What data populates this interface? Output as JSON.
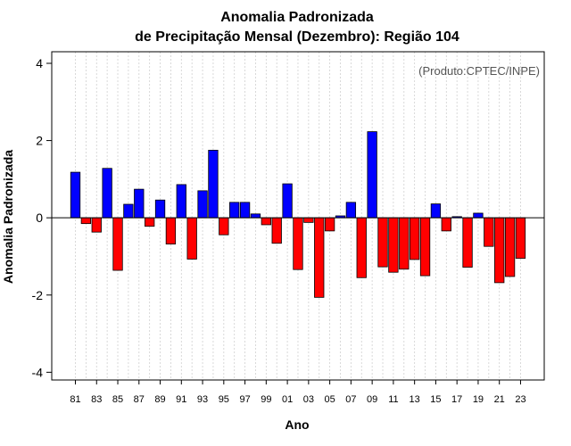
{
  "chart_data": {
    "type": "bar",
    "title_line1": "Anomalia Padronizada",
    "title_line2": "de Precipitação Mensal (Dezembro): Região 104",
    "xlabel": "Ano",
    "ylabel": "Anomalia Padronizada",
    "credit": "(Produto:CPTEC/INPE)",
    "ylim": [
      -4.2,
      4.3
    ],
    "yticks": [
      -4,
      -2,
      0,
      2,
      4
    ],
    "ytick_labels": [
      "-4",
      "-2",
      "0",
      "2",
      "4"
    ],
    "tick_labels": [
      "81",
      "83",
      "85",
      "87",
      "89",
      "91",
      "93",
      "95",
      "97",
      "99",
      "01",
      "03",
      "05",
      "07",
      "09",
      "11",
      "13",
      "15",
      "17",
      "19",
      "21",
      "23"
    ],
    "categories": [
      "1981",
      "1982",
      "1983",
      "1984",
      "1985",
      "1986",
      "1987",
      "1988",
      "1989",
      "1990",
      "1991",
      "1992",
      "1993",
      "1994",
      "1995",
      "1996",
      "1997",
      "1998",
      "1999",
      "2000",
      "2001",
      "2002",
      "2003",
      "2004",
      "2005",
      "2006",
      "2007",
      "2008",
      "2009",
      "2010",
      "2011",
      "2012",
      "2013",
      "2014",
      "2015",
      "2016",
      "2017",
      "2018",
      "2019",
      "2020",
      "2021",
      "2022",
      "2023"
    ],
    "values": [
      1.18,
      -0.15,
      -0.37,
      1.28,
      -1.36,
      0.35,
      0.74,
      -0.22,
      0.46,
      -0.68,
      0.86,
      -1.07,
      0.7,
      1.75,
      -0.44,
      0.4,
      0.4,
      0.1,
      -0.18,
      -0.66,
      0.88,
      -1.34,
      -0.12,
      -2.06,
      -0.34,
      0.05,
      0.4,
      -1.55,
      2.23,
      -1.27,
      -1.41,
      -1.33,
      -1.08,
      -1.5,
      0.36,
      -0.34,
      0.03,
      -1.28,
      0.12,
      -0.74,
      -1.68,
      -1.52,
      -1.05
    ],
    "positive_color": "#0000ff",
    "negative_color": "#ff0000"
  }
}
